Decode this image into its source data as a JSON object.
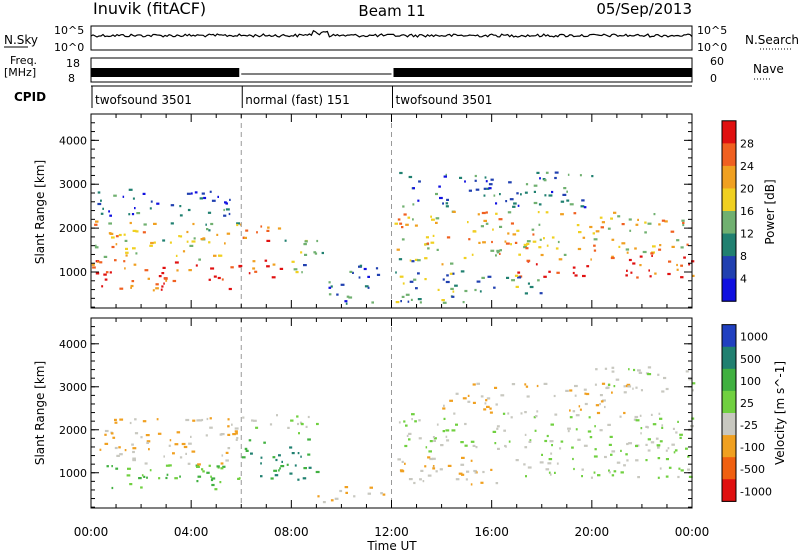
{
  "header": {
    "station": "Inuvik (fitACF)",
    "beam": "Beam 11",
    "date": "05/Sep/2013"
  },
  "top_panels": {
    "nsky_label": "N.Sky",
    "nsky_ticks": [
      "10^5",
      "10^0"
    ],
    "nsearch_label": "N.Search",
    "nsearch_ticks": [
      "10^5",
      "10^0"
    ],
    "freq_label": "Freq.",
    "freq_unit": "[MHz]",
    "freq_ticks": [
      "18",
      "8"
    ],
    "nave_label": "Nave",
    "nave_ticks": [
      "60",
      "0"
    ],
    "cpid_label": "CPID",
    "cpid_segments": [
      {
        "label": "twofsound 3501",
        "start": 0,
        "end": 6
      },
      {
        "label": "normal (fast) 151",
        "start": 6,
        "end": 12
      },
      {
        "label": "twofsound 3501",
        "start": 12,
        "end": 24
      }
    ]
  },
  "chart_data": [
    {
      "type": "heatmap",
      "title": "",
      "xlabel": "Time UT",
      "ylabel": "Slant Range [km]",
      "xlim": [
        0,
        24
      ],
      "ylim": [
        180,
        4600
      ],
      "x_ticks": [
        "00:00",
        "04:00",
        "08:00",
        "12:00",
        "16:00",
        "20:00",
        "00:00"
      ],
      "y_ticks": [
        1000,
        2000,
        3000,
        4000
      ],
      "colorbar": {
        "label": "Power [dB]",
        "ticks": [
          4,
          8,
          12,
          16,
          20,
          24,
          28
        ],
        "range": [
          0,
          32
        ],
        "colors": [
          "#1010e0",
          "#2040b0",
          "#208070",
          "#70b070",
          "#f0d020",
          "#f0a020",
          "#f06020",
          "#e01010"
        ]
      },
      "mode_boundaries": [
        6,
        12
      ],
      "bands": [
        {
          "t0": 0.0,
          "t1": 6.0,
          "r0": 600,
          "r1": 1300,
          "value": 28
        },
        {
          "t0": 0.0,
          "t1": 6.0,
          "r0": 1300,
          "r1": 2200,
          "value": 18
        },
        {
          "t0": 0.0,
          "t1": 6.0,
          "r0": 2300,
          "r1": 2900,
          "value": 8
        },
        {
          "t0": 6.0,
          "t1": 7.6,
          "r0": 800,
          "r1": 1300,
          "value": 28
        },
        {
          "t0": 6.0,
          "t1": 7.6,
          "r0": 1700,
          "r1": 2200,
          "value": 24
        },
        {
          "t0": 7.6,
          "t1": 9.3,
          "r0": 1000,
          "r1": 1800,
          "value": 14
        },
        {
          "t0": 9.3,
          "t1": 11.5,
          "r0": 300,
          "r1": 1200,
          "value": 8
        },
        {
          "t0": 12.1,
          "t1": 15.0,
          "r0": 300,
          "r1": 1400,
          "value": 14
        },
        {
          "t0": 12.1,
          "t1": 24.0,
          "r0": 1400,
          "r1": 2400,
          "value": 20
        },
        {
          "t0": 12.1,
          "t1": 20.0,
          "r0": 2500,
          "r1": 3300,
          "value": 8
        },
        {
          "t0": 17.0,
          "t1": 24.0,
          "r0": 900,
          "r1": 1400,
          "value": 28
        },
        {
          "t0": 14.0,
          "t1": 18.0,
          "r0": 500,
          "r1": 1000,
          "value": 12
        }
      ]
    },
    {
      "type": "heatmap",
      "title": "",
      "xlabel": "Time UT",
      "ylabel": "Slant Range [km]",
      "xlim": [
        0,
        24
      ],
      "ylim": [
        180,
        4600
      ],
      "x_ticks": [
        "00:00",
        "04:00",
        "08:00",
        "12:00",
        "16:00",
        "20:00",
        "00:00"
      ],
      "y_ticks": [
        1000,
        2000,
        3000,
        4000
      ],
      "colorbar": {
        "label": "Velocity [m s^-1]",
        "ticks": [
          "1000",
          "500",
          "100",
          "25",
          "-25",
          "-100",
          "-500",
          "-1000"
        ],
        "range": [
          -1200,
          1200
        ],
        "colors": [
          "#2040c0",
          "#208070",
          "#40b040",
          "#70d040",
          "#c8c8c0",
          "#f0a020",
          "#f06010",
          "#e01010"
        ]
      },
      "mode_boundaries": [
        6,
        12
      ],
      "bands": [
        {
          "t0": 0.0,
          "t1": 6.0,
          "r0": 600,
          "r1": 1200,
          "value": 300
        },
        {
          "t0": 0.0,
          "t1": 6.0,
          "r0": 1200,
          "r1": 2300,
          "value": -300
        },
        {
          "t0": 6.0,
          "t1": 9.0,
          "r0": 800,
          "r1": 1800,
          "value": 600
        },
        {
          "t0": 6.0,
          "t1": 9.0,
          "r0": 1900,
          "r1": 2400,
          "value": 0
        },
        {
          "t0": 9.0,
          "t1": 11.8,
          "r0": 300,
          "r1": 700,
          "value": -300
        },
        {
          "t0": 12.1,
          "t1": 24.0,
          "r0": 1500,
          "r1": 2400,
          "value": 0
        },
        {
          "t0": 12.1,
          "t1": 17.0,
          "r0": 700,
          "r1": 1400,
          "value": -300
        },
        {
          "t0": 17.0,
          "t1": 24.0,
          "r0": 900,
          "r1": 1500,
          "value": 0
        },
        {
          "t0": 14.0,
          "t1": 22.0,
          "r0": 2400,
          "r1": 3100,
          "value": -300
        },
        {
          "t0": 20.0,
          "t1": 24.0,
          "r0": 2900,
          "r1": 3500,
          "value": 0
        }
      ]
    }
  ]
}
